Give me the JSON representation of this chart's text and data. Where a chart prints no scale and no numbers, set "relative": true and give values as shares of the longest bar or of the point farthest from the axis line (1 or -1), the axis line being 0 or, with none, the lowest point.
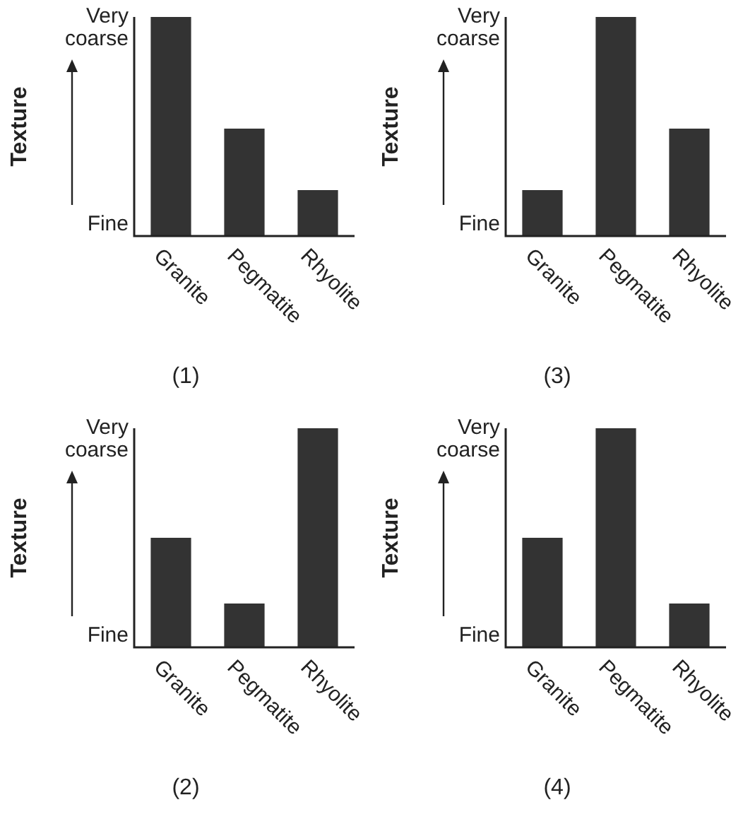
{
  "chart_data": [
    {
      "type": "bar",
      "title": "(1)",
      "ylabel": "Texture",
      "categories": [
        "Granite",
        "Pegmatite",
        "Rhyolite"
      ],
      "values": [
        1,
        0.49,
        0.21
      ],
      "color": "#333333",
      "relative": true,
      "annotations": [
        "Very coarse",
        "Fine"
      ]
    },
    {
      "type": "bar",
      "title": "(3)",
      "ylabel": "Texture",
      "categories": [
        "Granite",
        "Pegmatite",
        "Rhyolite"
      ],
      "values": [
        0.21,
        1,
        0.49
      ],
      "color": "#333333",
      "relative": true,
      "annotations": [
        "Very coarse",
        "Fine"
      ]
    },
    {
      "type": "bar",
      "title": "(2)",
      "ylabel": "Texture",
      "categories": [
        "Granite",
        "Pegmatite",
        "Rhyolite"
      ],
      "values": [
        0.5,
        0.2,
        1
      ],
      "color": "#333333",
      "relative": true,
      "annotations": [
        "Very coarse",
        "Fine"
      ]
    },
    {
      "type": "bar",
      "title": "(4)",
      "ylabel": "Texture",
      "categories": [
        "Granite",
        "Pegmatite",
        "Rhyolite"
      ],
      "values": [
        0.5,
        1,
        0.2
      ],
      "color": "#333333",
      "relative": true,
      "annotations": [
        "Very coarse",
        "Fine"
      ]
    }
  ]
}
